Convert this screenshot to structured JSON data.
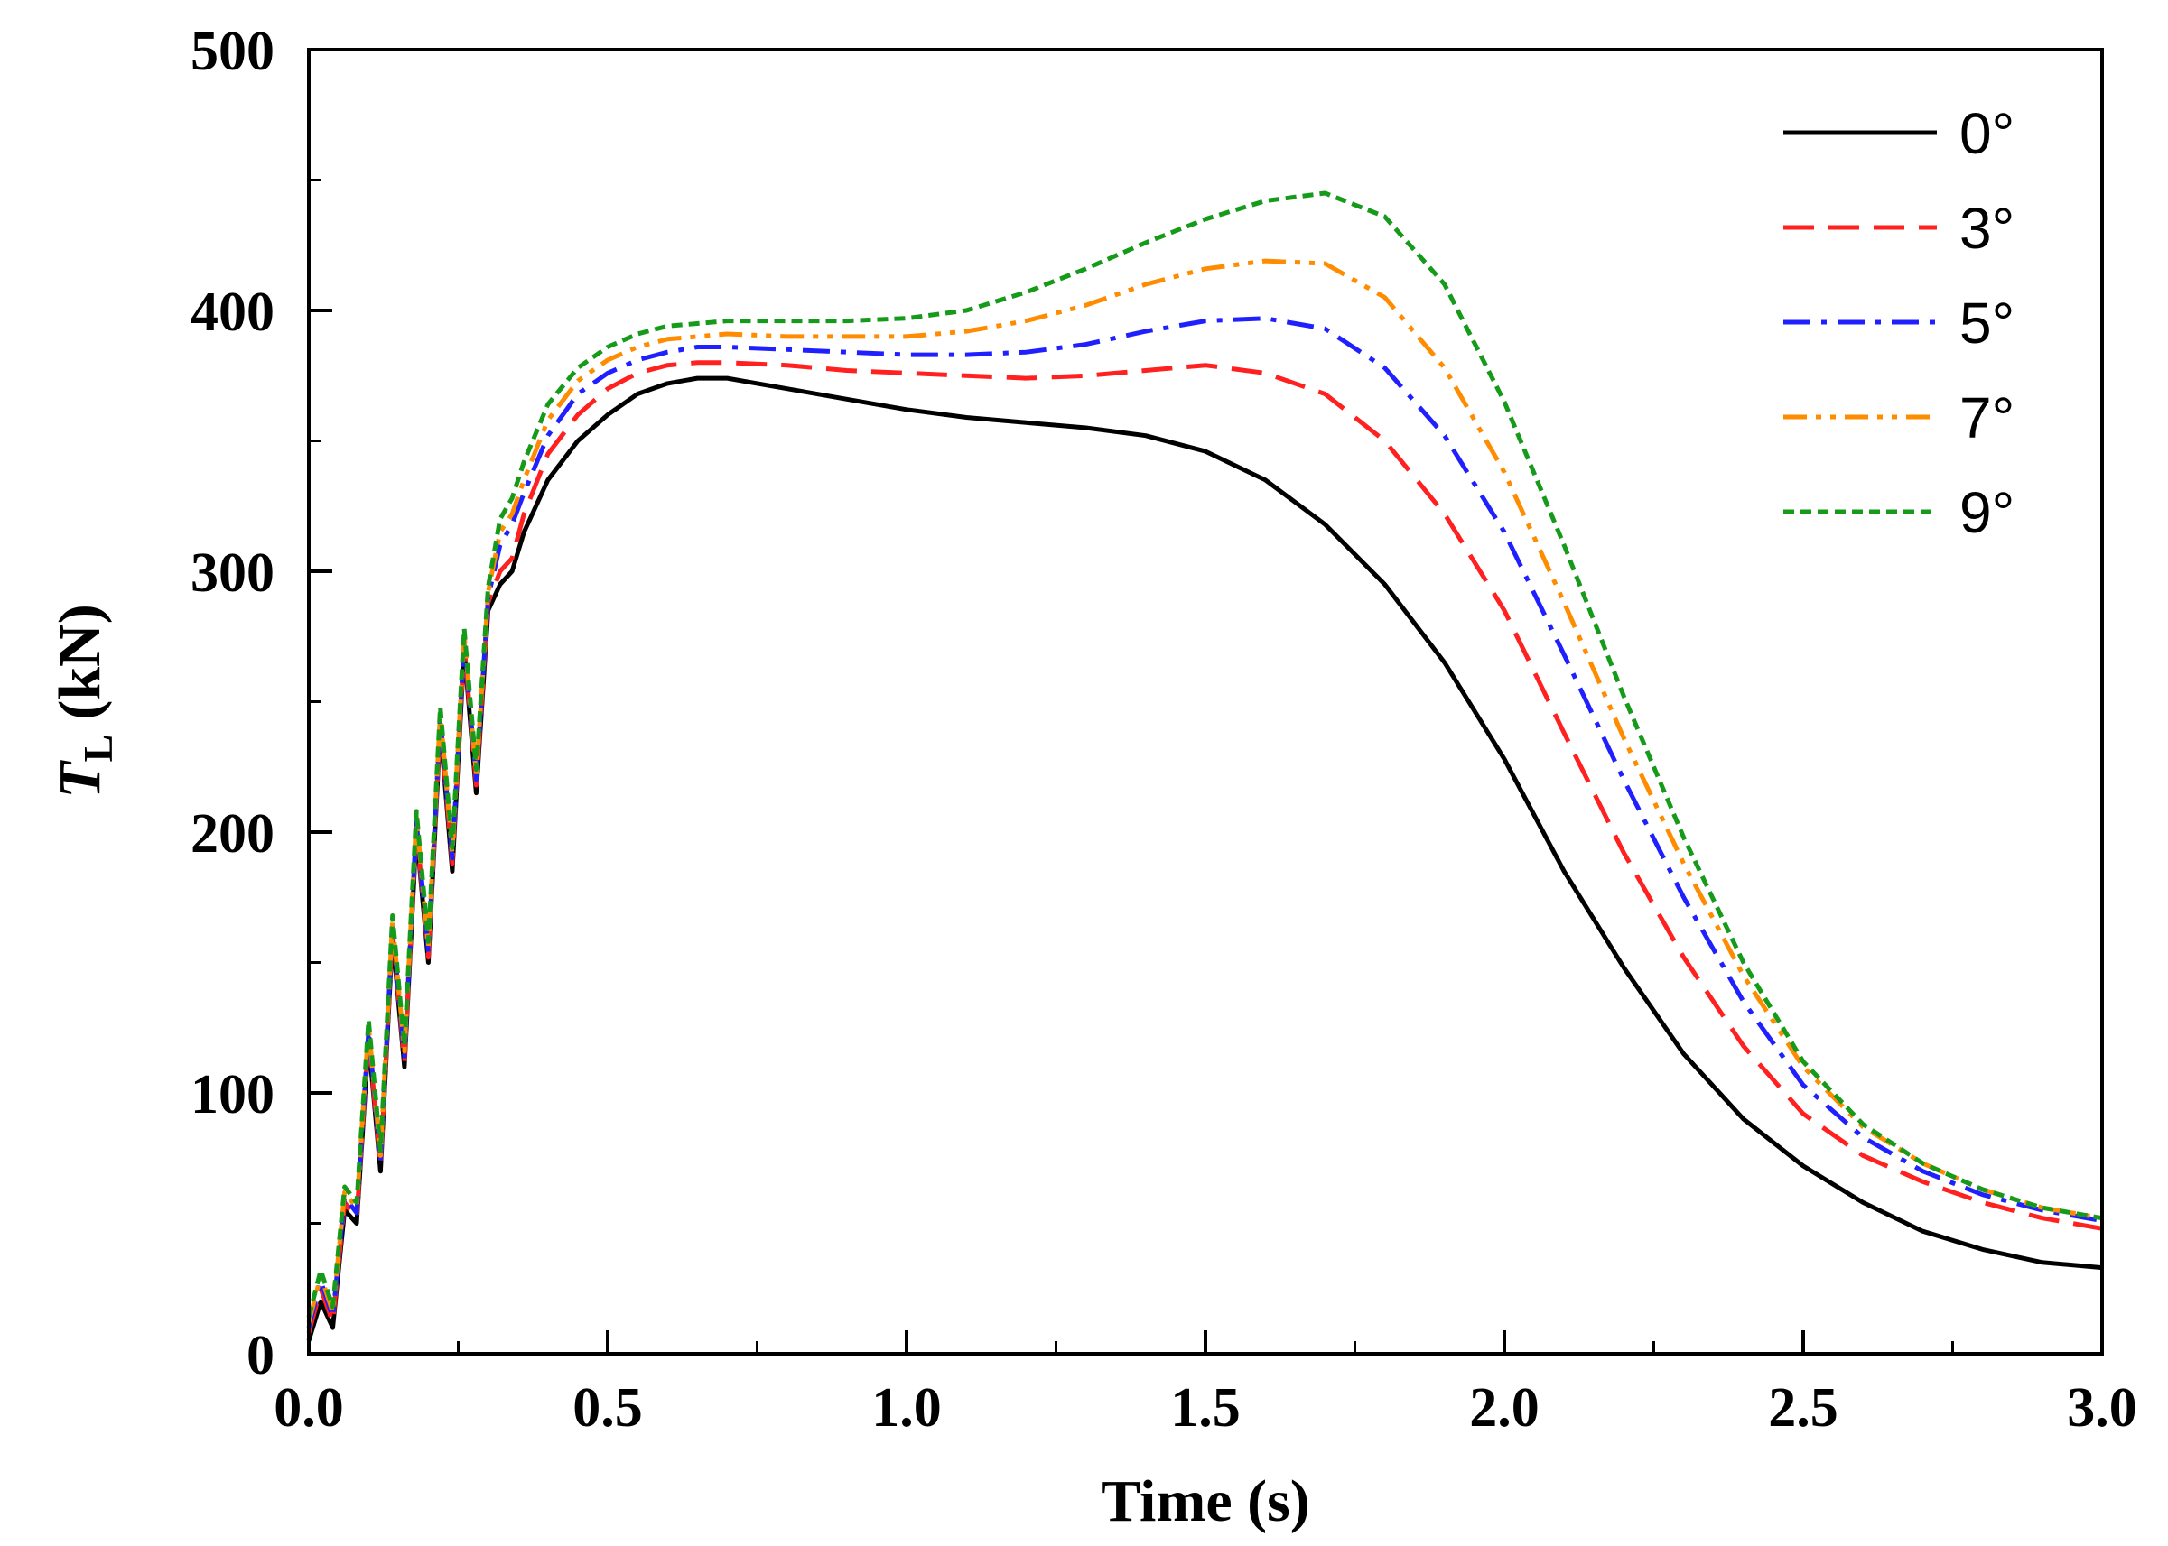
{
  "chart_data": {
    "type": "line",
    "xlabel": "Time (s)",
    "ylabel": {
      "symbol": "T",
      "subscript": "L",
      "unit": "(kN)"
    },
    "xlim": [
      0.0,
      3.0
    ],
    "ylim": [
      0,
      500
    ],
    "xticks": [
      0.0,
      0.5,
      1.0,
      1.5,
      2.0,
      2.5,
      3.0
    ],
    "xtick_labels": [
      "0.0",
      "0.5",
      "1.0",
      "1.5",
      "2.0",
      "2.5",
      "3.0"
    ],
    "yticks": [
      0,
      100,
      200,
      300,
      400,
      500
    ],
    "ytick_labels": [
      "0",
      "100",
      "200",
      "300",
      "400",
      "500"
    ],
    "grid": false,
    "legend_position": "top-right",
    "series": [
      {
        "name": "0°",
        "color": "#000000",
        "dash": "solid",
        "x": [
          0.0,
          0.02,
          0.04,
          0.06,
          0.08,
          0.1,
          0.12,
          0.14,
          0.16,
          0.18,
          0.2,
          0.22,
          0.24,
          0.26,
          0.28,
          0.3,
          0.32,
          0.34,
          0.36,
          0.4,
          0.45,
          0.5,
          0.55,
          0.6,
          0.65,
          0.7,
          0.8,
          0.9,
          1.0,
          1.1,
          1.2,
          1.3,
          1.4,
          1.5,
          1.6,
          1.7,
          1.8,
          1.9,
          2.0,
          2.1,
          2.2,
          2.3,
          2.4,
          2.5,
          2.6,
          2.7,
          2.8,
          2.9,
          3.0
        ],
        "y": [
          5,
          20,
          10,
          55,
          50,
          120,
          70,
          160,
          110,
          200,
          150,
          240,
          185,
          270,
          215,
          285,
          295,
          300,
          315,
          335,
          350,
          360,
          368,
          372,
          374,
          374,
          370,
          366,
          362,
          359,
          357,
          355,
          352,
          346,
          335,
          318,
          295,
          265,
          228,
          185,
          148,
          115,
          90,
          72,
          58,
          47,
          40,
          35,
          33
        ]
      },
      {
        "name": "3°",
        "color": "#ff2020",
        "dash": "long-dash",
        "x": [
          0.0,
          0.02,
          0.04,
          0.06,
          0.08,
          0.1,
          0.12,
          0.14,
          0.16,
          0.18,
          0.2,
          0.22,
          0.24,
          0.26,
          0.28,
          0.3,
          0.32,
          0.34,
          0.36,
          0.4,
          0.45,
          0.5,
          0.55,
          0.6,
          0.65,
          0.7,
          0.8,
          0.9,
          1.0,
          1.1,
          1.2,
          1.3,
          1.4,
          1.5,
          1.6,
          1.7,
          1.8,
          1.9,
          2.0,
          2.1,
          2.2,
          2.3,
          2.4,
          2.5,
          2.6,
          2.7,
          2.8,
          2.9,
          3.0
        ],
        "y": [
          8,
          25,
          12,
          58,
          52,
          122,
          72,
          162,
          112,
          202,
          152,
          242,
          188,
          272,
          218,
          288,
          300,
          305,
          322,
          345,
          360,
          370,
          376,
          379,
          380,
          380,
          379,
          377,
          376,
          375,
          374,
          375,
          377,
          379,
          376,
          368,
          350,
          322,
          285,
          238,
          192,
          152,
          118,
          92,
          76,
          66,
          58,
          52,
          48
        ]
      },
      {
        "name": "5°",
        "color": "#2020ff",
        "dash": "dash-dot",
        "x": [
          0.0,
          0.02,
          0.04,
          0.06,
          0.08,
          0.1,
          0.12,
          0.14,
          0.16,
          0.18,
          0.2,
          0.22,
          0.24,
          0.26,
          0.28,
          0.3,
          0.32,
          0.34,
          0.36,
          0.4,
          0.45,
          0.5,
          0.55,
          0.6,
          0.65,
          0.7,
          0.8,
          0.9,
          1.0,
          1.1,
          1.2,
          1.3,
          1.4,
          1.5,
          1.6,
          1.7,
          1.8,
          1.9,
          2.0,
          2.1,
          2.2,
          2.3,
          2.4,
          2.5,
          2.6,
          2.7,
          2.8,
          2.9,
          3.0
        ],
        "y": [
          10,
          28,
          14,
          60,
          54,
          124,
          74,
          164,
          114,
          204,
          154,
          244,
          190,
          274,
          220,
          290,
          310,
          318,
          330,
          352,
          368,
          376,
          381,
          384,
          386,
          386,
          385,
          384,
          383,
          383,
          384,
          387,
          392,
          396,
          397,
          393,
          378,
          352,
          315,
          268,
          220,
          175,
          135,
          103,
          83,
          70,
          61,
          55,
          51
        ]
      },
      {
        "name": "7°",
        "color": "#ff8c00",
        "dash": "dash-dot-dot",
        "x": [
          0.0,
          0.02,
          0.04,
          0.06,
          0.08,
          0.1,
          0.12,
          0.14,
          0.16,
          0.18,
          0.2,
          0.22,
          0.24,
          0.26,
          0.28,
          0.3,
          0.32,
          0.34,
          0.36,
          0.4,
          0.45,
          0.5,
          0.55,
          0.6,
          0.65,
          0.7,
          0.8,
          0.9,
          1.0,
          1.1,
          1.2,
          1.3,
          1.4,
          1.5,
          1.6,
          1.7,
          1.8,
          1.9,
          2.0,
          2.1,
          2.2,
          2.3,
          2.4,
          2.5,
          2.6,
          2.7,
          2.8,
          2.9,
          3.0
        ],
        "y": [
          12,
          30,
          16,
          62,
          56,
          126,
          76,
          166,
          116,
          206,
          156,
          246,
          192,
          276,
          222,
          292,
          315,
          322,
          335,
          358,
          373,
          381,
          386,
          389,
          390,
          391,
          390,
          390,
          390,
          392,
          396,
          402,
          410,
          416,
          419,
          418,
          405,
          378,
          338,
          288,
          236,
          188,
          145,
          110,
          87,
          73,
          63,
          56,
          52
        ]
      },
      {
        "name": "9°",
        "color": "#159a1a",
        "dash": "short-dash",
        "x": [
          0.0,
          0.02,
          0.04,
          0.06,
          0.08,
          0.1,
          0.12,
          0.14,
          0.16,
          0.18,
          0.2,
          0.22,
          0.24,
          0.26,
          0.28,
          0.3,
          0.32,
          0.34,
          0.36,
          0.4,
          0.45,
          0.5,
          0.55,
          0.6,
          0.65,
          0.7,
          0.8,
          0.9,
          1.0,
          1.1,
          1.2,
          1.3,
          1.4,
          1.5,
          1.6,
          1.7,
          1.8,
          1.9,
          2.0,
          2.1,
          2.2,
          2.3,
          2.4,
          2.5,
          2.6,
          2.7,
          2.8,
          2.9,
          3.0
        ],
        "y": [
          14,
          32,
          18,
          64,
          58,
          128,
          78,
          168,
          118,
          208,
          158,
          248,
          194,
          278,
          224,
          294,
          320,
          328,
          342,
          364,
          378,
          386,
          391,
          394,
          395,
          396,
          396,
          396,
          397,
          400,
          407,
          416,
          426,
          435,
          442,
          445,
          436,
          410,
          365,
          310,
          252,
          198,
          150,
          112,
          88,
          73,
          63,
          56,
          52
        ]
      }
    ]
  }
}
